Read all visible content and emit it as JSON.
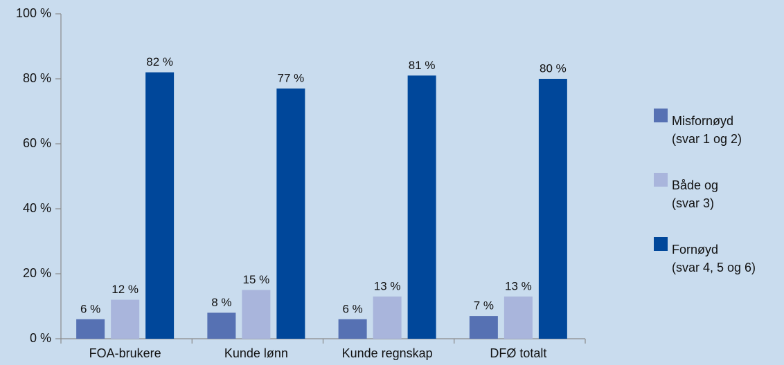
{
  "chart_data": {
    "type": "bar",
    "categories": [
      "FOA-brukere",
      "Kunde lønn",
      "Kunde regnskap",
      "DFØ totalt"
    ],
    "series": [
      {
        "name": "Misfornøyd (svar 1 og 2)",
        "color": "#5671b3",
        "values": [
          6,
          8,
          6,
          7
        ],
        "value_labels": [
          "6 %",
          "8 %",
          "6 %",
          "7 %"
        ]
      },
      {
        "name": "Både og (svar 3)",
        "color": "#a9b5dc",
        "values": [
          12,
          15,
          13,
          13
        ],
        "value_labels": [
          "12 %",
          "15 %",
          "13 %",
          "13 %"
        ]
      },
      {
        "name": "Fornøyd (svar 4, 5 og 6)",
        "color": "#00479a",
        "values": [
          82,
          77,
          81,
          80
        ],
        "value_labels": [
          "82 %",
          "77 %",
          "81 %",
          "80 %"
        ]
      }
    ],
    "ylim": [
      0,
      100
    ],
    "yticks": [
      {
        "value": 0,
        "label": "0 %"
      },
      {
        "value": 20,
        "label": "20 %"
      },
      {
        "value": 40,
        "label": "40 %"
      },
      {
        "value": 60,
        "label": "60 %"
      },
      {
        "value": 80,
        "label": "80 %"
      },
      {
        "value": 100,
        "label": "100 %"
      }
    ],
    "legend": "right"
  }
}
